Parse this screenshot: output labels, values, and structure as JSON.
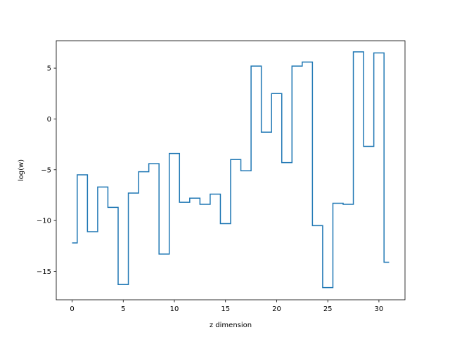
{
  "chart_data": {
    "type": "line",
    "style": "step",
    "xlabel": "z dimension",
    "ylabel": "log(w)",
    "xlim": [
      -1.55,
      32.55
    ],
    "ylim": [
      -17.8,
      7.7
    ],
    "xticks": [
      0,
      5,
      10,
      15,
      20,
      25,
      30
    ],
    "yticks": [
      -15,
      -10,
      -5,
      0,
      5
    ],
    "grid": false,
    "series": [
      {
        "color": "#1f77b4",
        "x": [
          0,
          1,
          2,
          3,
          4,
          5,
          6,
          7,
          8,
          9,
          10,
          11,
          12,
          13,
          14,
          15,
          16,
          17,
          18,
          19,
          20,
          21,
          22,
          23,
          24,
          25,
          26,
          27,
          28,
          29,
          30,
          31
        ],
        "values": [
          -12.2,
          -5.5,
          -11.1,
          -6.7,
          -8.7,
          -16.3,
          -7.3,
          -5.2,
          -4.4,
          -13.3,
          -3.4,
          -8.2,
          -7.8,
          -8.4,
          -7.4,
          -10.3,
          -4.0,
          -5.1,
          5.2,
          -1.3,
          2.5,
          -4.3,
          5.2,
          5.6,
          -10.5,
          -16.6,
          -8.3,
          -8.4,
          6.6,
          -2.7,
          6.5,
          -14.1
        ]
      }
    ]
  }
}
